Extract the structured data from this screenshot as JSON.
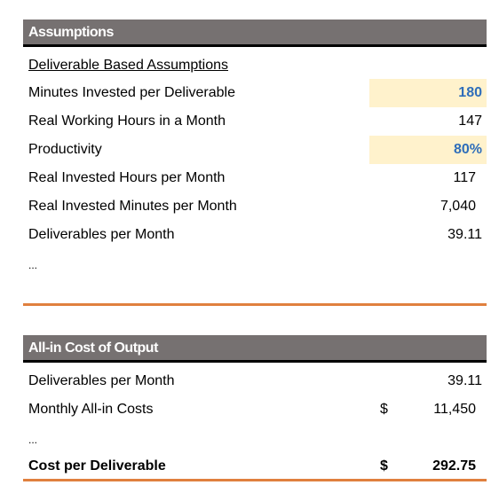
{
  "sections": [
    {
      "title": "Assumptions",
      "subtitle": "Deliverable Based Assumptions",
      "rows": [
        {
          "label": "Minutes Invested per Deliverable",
          "value": "180"
        },
        {
          "label": "Real Working Hours in a Month",
          "value": "147"
        },
        {
          "label": "Productivity",
          "value": "80%"
        },
        {
          "label": "Real Invested Hours per Month",
          "value": "117"
        },
        {
          "label": "Real Invested Minutes per Month",
          "value": "7,040"
        },
        {
          "label": "Deliverables per Month",
          "value": "39.11"
        }
      ],
      "ellipsis": "..."
    },
    {
      "title": "All-in Cost of Output",
      "rows": [
        {
          "label": "Deliverables per Month",
          "value": "39.11"
        },
        {
          "label": "Monthly All-in Costs",
          "currency": "$",
          "value": "11,450"
        }
      ],
      "ellipsis": "...",
      "total": {
        "label": "Cost per Deliverable",
        "currency": "$",
        "value": "292.75"
      }
    }
  ]
}
